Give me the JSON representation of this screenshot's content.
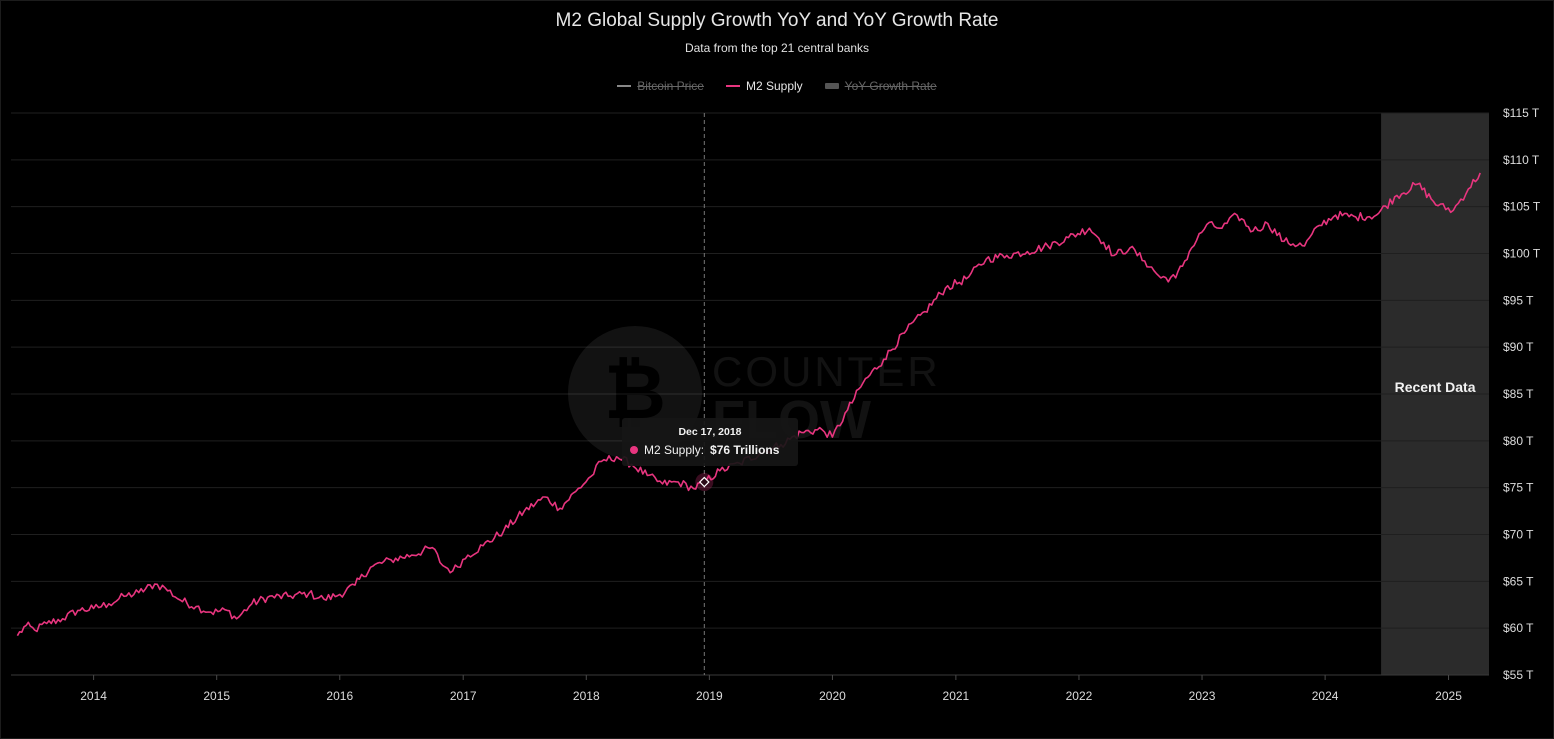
{
  "chart_data": {
    "type": "line",
    "title": "M2 Global Supply Growth YoY and YoY Growth Rate",
    "subtitle": "Data from the top 21 central banks",
    "legend": [
      {
        "name": "Bitcoin Price",
        "enabled": false,
        "color": "#888888",
        "marker": "line"
      },
      {
        "name": "M2 Supply",
        "enabled": true,
        "color": "#e8357f",
        "marker": "line"
      },
      {
        "name": "YoY Growth Rate",
        "enabled": false,
        "color": "#666666",
        "marker": "rect"
      }
    ],
    "legend_position": "top-center",
    "x_ticks": [
      "2014",
      "2015",
      "2016",
      "2017",
      "2018",
      "2019",
      "2020",
      "2021",
      "2022",
      "2023",
      "2024",
      "2025"
    ],
    "y_ticks": [
      "$55 T",
      "$60 T",
      "$65 T",
      "$70 T",
      "$75 T",
      "$80 T",
      "$85 T",
      "$90 T",
      "$95 T",
      "$100 T",
      "$105 T",
      "$110 T",
      "$115 T"
    ],
    "ylim": [
      55,
      115
    ],
    "xlim": [
      "2013-05-01",
      "2025-05-01"
    ],
    "y_axis_side": "right",
    "grid": "horizontal",
    "series": [
      {
        "name": "M2 Supply",
        "color": "#e8357f",
        "points": [
          [
            "2013-05-20",
            59.2
          ],
          [
            "2013-06-15",
            60.3
          ],
          [
            "2013-07-10",
            59.8
          ],
          [
            "2013-08-15",
            60.5
          ],
          [
            "2013-10-01",
            61.0
          ],
          [
            "2013-11-15",
            61.9
          ],
          [
            "2014-01-01",
            62.1
          ],
          [
            "2014-02-15",
            62.6
          ],
          [
            "2014-04-01",
            63.4
          ],
          [
            "2014-05-15",
            63.8
          ],
          [
            "2014-07-01",
            64.7
          ],
          [
            "2014-08-01",
            64.3
          ],
          [
            "2014-09-15",
            63.0
          ],
          [
            "2014-11-01",
            62.3
          ],
          [
            "2014-12-15",
            61.7
          ],
          [
            "2015-02-01",
            61.9
          ],
          [
            "2015-03-01",
            61.0
          ],
          [
            "2015-04-15",
            62.6
          ],
          [
            "2015-06-01",
            63.3
          ],
          [
            "2015-08-01",
            63.4
          ],
          [
            "2015-10-01",
            63.7
          ],
          [
            "2015-11-15",
            63.1
          ],
          [
            "2016-01-01",
            63.6
          ],
          [
            "2016-02-15",
            64.6
          ],
          [
            "2016-04-01",
            66.5
          ],
          [
            "2016-06-01",
            67.3
          ],
          [
            "2016-08-01",
            67.8
          ],
          [
            "2016-10-01",
            68.6
          ],
          [
            "2016-11-01",
            66.7
          ],
          [
            "2016-12-01",
            66.1
          ],
          [
            "2017-01-15",
            67.8
          ],
          [
            "2017-03-01",
            68.8
          ],
          [
            "2017-05-01",
            70.4
          ],
          [
            "2017-07-01",
            72.5
          ],
          [
            "2017-09-01",
            74.0
          ],
          [
            "2017-10-15",
            72.8
          ],
          [
            "2017-12-01",
            74.6
          ],
          [
            "2018-01-15",
            76.2
          ],
          [
            "2018-02-15",
            77.8
          ],
          [
            "2018-04-01",
            78.3
          ],
          [
            "2018-05-15",
            77.5
          ],
          [
            "2018-07-01",
            76.3
          ],
          [
            "2018-08-15",
            75.4
          ],
          [
            "2018-10-01",
            75.6
          ],
          [
            "2018-11-15",
            74.9
          ],
          [
            "2018-12-17",
            75.6
          ],
          [
            "2019-02-01",
            76.8
          ],
          [
            "2019-04-01",
            77.6
          ],
          [
            "2019-06-01",
            78.7
          ],
          [
            "2019-08-01",
            79.6
          ],
          [
            "2019-10-01",
            80.9
          ],
          [
            "2019-12-01",
            81.2
          ],
          [
            "2020-01-01",
            80.4
          ],
          [
            "2020-02-15",
            83.3
          ],
          [
            "2020-04-01",
            86.2
          ],
          [
            "2020-06-01",
            88.7
          ],
          [
            "2020-08-01",
            91.5
          ],
          [
            "2020-10-01",
            93.8
          ],
          [
            "2020-12-01",
            96.3
          ],
          [
            "2021-02-01",
            97.3
          ],
          [
            "2021-04-01",
            99.4
          ],
          [
            "2021-06-01",
            99.8
          ],
          [
            "2021-08-01",
            100.2
          ],
          [
            "2021-10-01",
            100.8
          ],
          [
            "2021-12-01",
            101.7
          ],
          [
            "2022-02-01",
            102.7
          ],
          [
            "2022-03-15",
            101.2
          ],
          [
            "2022-04-15",
            99.8
          ],
          [
            "2022-06-01",
            100.6
          ],
          [
            "2022-07-15",
            99.2
          ],
          [
            "2022-09-01",
            97.4
          ],
          [
            "2022-10-15",
            97.4
          ],
          [
            "2022-12-01",
            100.6
          ],
          [
            "2023-01-15",
            103.1
          ],
          [
            "2023-03-01",
            102.7
          ],
          [
            "2023-04-15",
            104.1
          ],
          [
            "2023-06-01",
            102.4
          ],
          [
            "2023-07-15",
            103.2
          ],
          [
            "2023-09-01",
            101.3
          ],
          [
            "2023-11-01",
            100.8
          ],
          [
            "2023-12-15",
            103.0
          ],
          [
            "2024-02-01",
            104.1
          ],
          [
            "2024-04-01",
            103.9
          ],
          [
            "2024-06-01",
            104.1
          ],
          [
            "2024-08-01",
            106.2
          ],
          [
            "2024-10-01",
            107.4
          ],
          [
            "2024-12-01",
            105.1
          ],
          [
            "2025-01-15",
            104.6
          ],
          [
            "2025-03-01",
            106.9
          ],
          [
            "2025-04-05",
            108.6
          ]
        ]
      }
    ],
    "shaded_region": {
      "start": "2024-06-15",
      "end": "2025-05-01",
      "label": "Recent Data",
      "color": "#2b2b2b"
    },
    "crosshair_date": "2018-12-17",
    "tooltip": {
      "date": "Dec 17, 2018",
      "series": "M2 Supply",
      "value": "$76 Trillions"
    }
  }
}
